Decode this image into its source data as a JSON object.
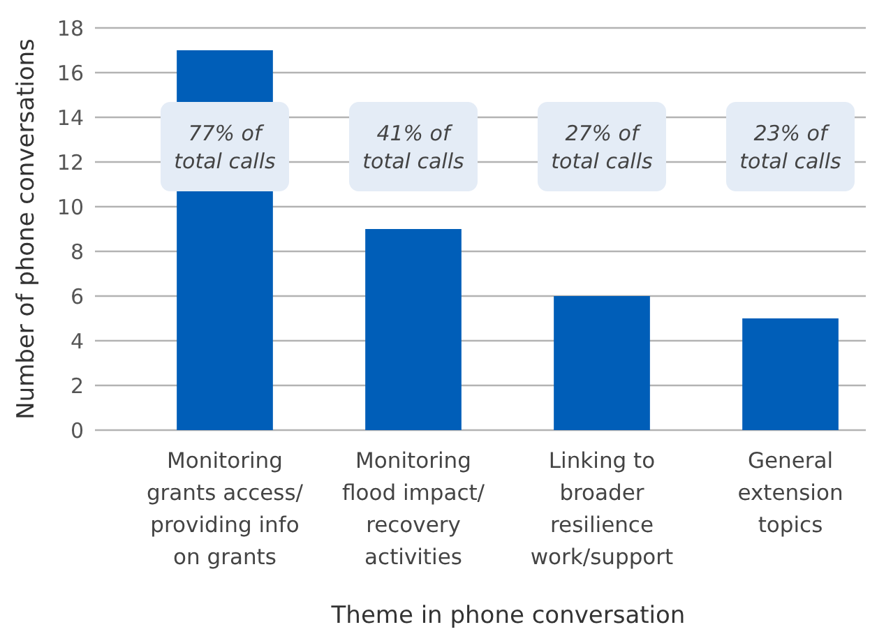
{
  "chart_data": {
    "type": "bar",
    "xlabel": "Theme in phone conversation",
    "ylabel": "Number of phone conversations",
    "categories": [
      "Monitoring\ngrants access/\nproviding info\non grants",
      "Monitoring\nflood impact/\nrecovery\nactivities",
      "Linking to\nbroader\nresilience\nwork/support",
      "General\nextension\ntopics"
    ],
    "values": [
      17,
      9,
      6,
      5
    ],
    "color": "#005eb8",
    "ylim": [
      0,
      18
    ],
    "yticks": [
      0,
      2,
      4,
      6,
      8,
      10,
      12,
      14,
      16,
      18
    ],
    "grid": "y",
    "annotations": [
      "77% of\ntotal calls",
      "41% of\ntotal calls",
      "27% of\ntotal calls",
      "23% of\ntotal calls"
    ]
  }
}
